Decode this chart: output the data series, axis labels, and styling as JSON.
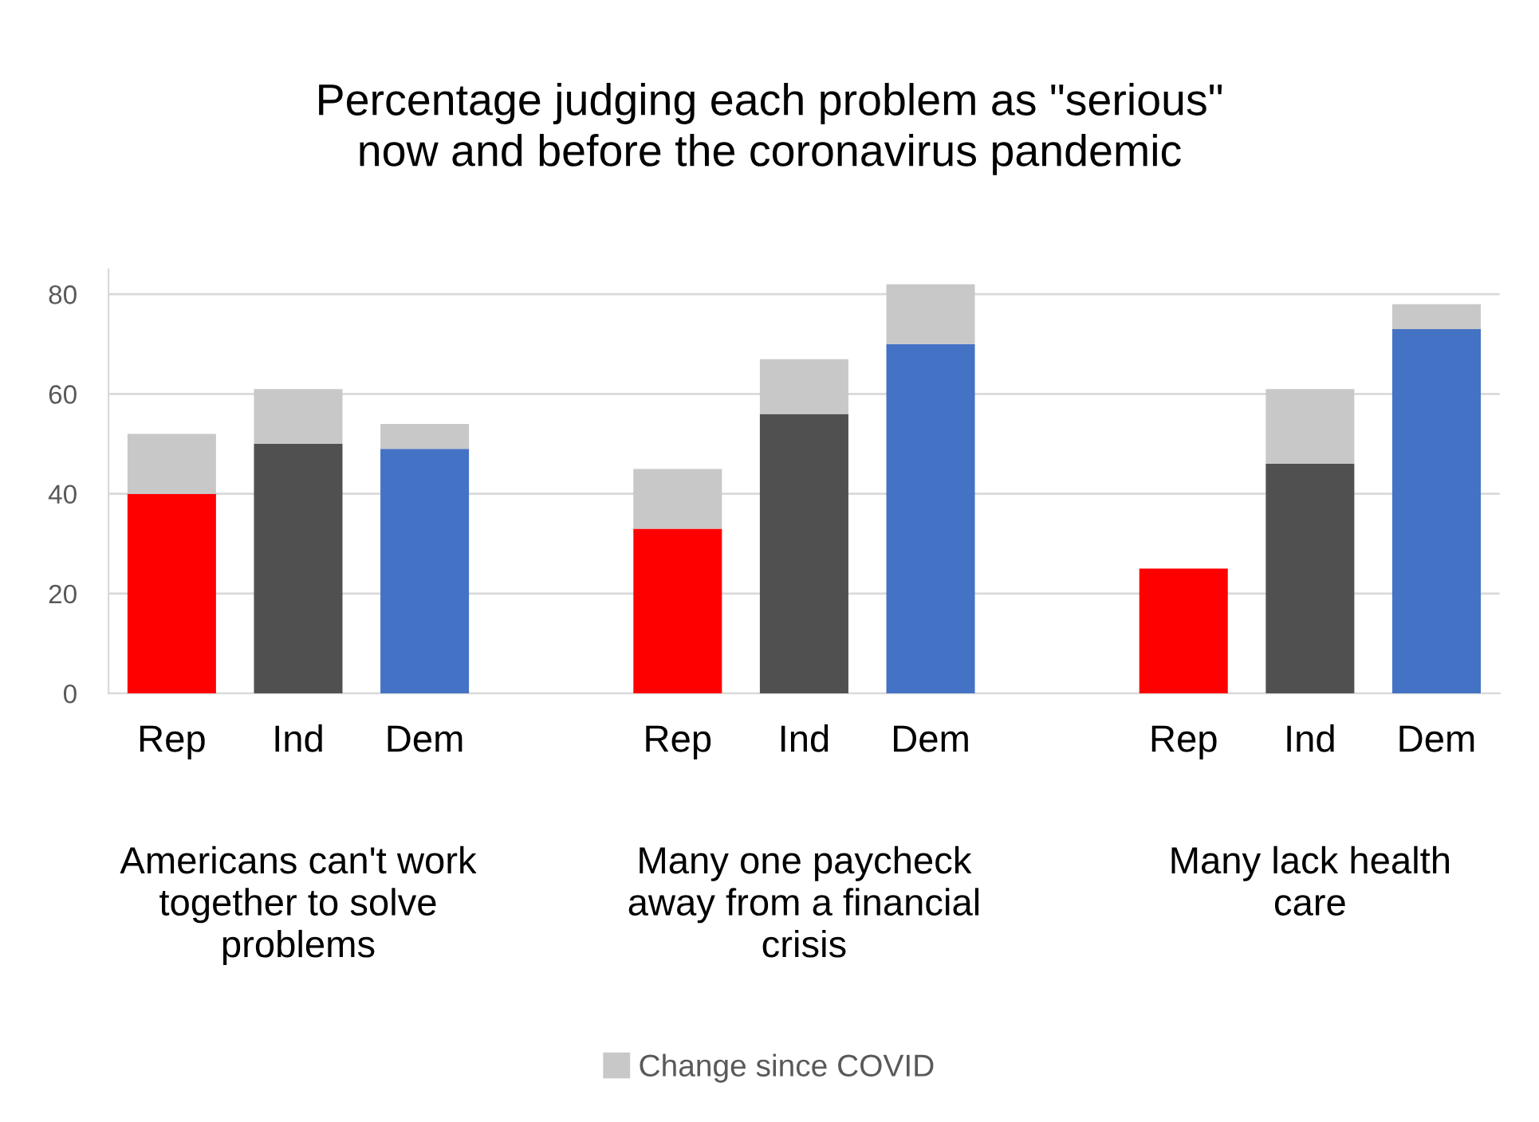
{
  "chart_data": {
    "type": "bar",
    "title": "Percentage judging each problem as \"serious\"\nnow and before the coronavirus pandemic",
    "categories": [
      "Rep",
      "Ind",
      "Dem",
      "Rep",
      "Ind",
      "Dem",
      "Rep",
      "Ind",
      "Dem"
    ],
    "series": [
      {
        "colors": [
          "#ff0000",
          "#505050",
          "#4472c4",
          "#ff0000",
          "#505050",
          "#4472c4",
          "#ff0000",
          "#505050",
          "#4472c4"
        ],
        "values": [
          40,
          50,
          49,
          33,
          56,
          70,
          25,
          46,
          73
        ]
      },
      {
        "name": "Change since COVID",
        "color": "#c8c8c8",
        "values": [
          12,
          11,
          5,
          12,
          11,
          12,
          0,
          15,
          5
        ]
      }
    ],
    "stacked": true,
    "ylim": [
      0,
      85
    ],
    "yticks": [
      0,
      20,
      40,
      60,
      80
    ],
    "grid": "y",
    "legend": "bottom",
    "annotations": [
      "Americans can't work\ntogether to solve\nproblems",
      "Many one paycheck\naway from a financial\ncrisis",
      "Many lack health\ncare"
    ]
  }
}
